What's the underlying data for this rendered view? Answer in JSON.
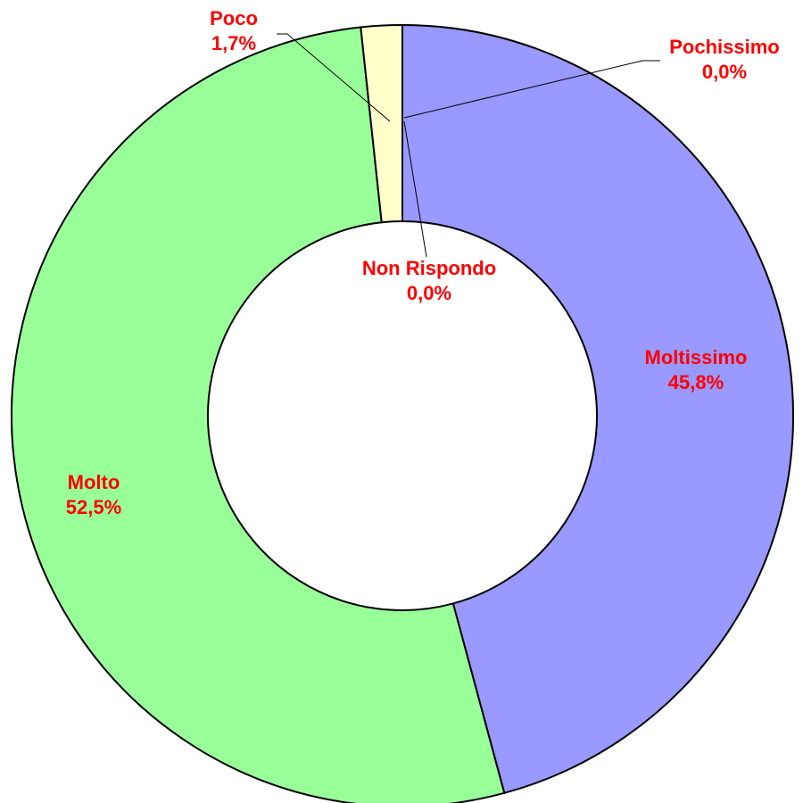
{
  "chart_data": {
    "type": "pie",
    "variant": "donut",
    "title": "",
    "legend": "none",
    "slices": [
      {
        "name": "Moltissimo",
        "value": 45.8,
        "value_label": "45,8%",
        "color": "#9999ff"
      },
      {
        "name": "Molto",
        "value": 52.5,
        "value_label": "52,5%",
        "color": "#99ff99"
      },
      {
        "name": "Poco",
        "value": 1.7,
        "value_label": "1,7%",
        "color": "#ffffcc"
      },
      {
        "name": "Pochissimo",
        "value": 0.0,
        "value_label": "0,0%",
        "color": "#ffffff"
      },
      {
        "name": "Non Rispondo",
        "value": 0.0,
        "value_label": "0,0%",
        "color": "#ffffff"
      }
    ],
    "label_color": "#ff0000",
    "outline_color": "#000000"
  }
}
